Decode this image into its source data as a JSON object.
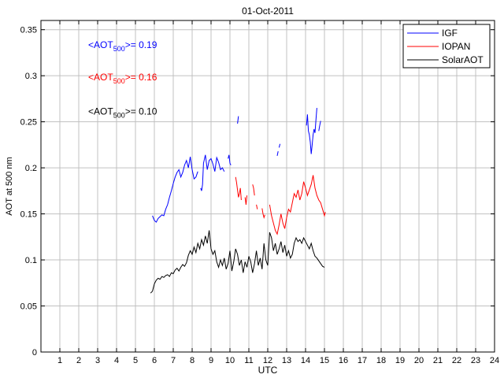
{
  "chart_data": {
    "type": "line",
    "title": "01-Oct-2011",
    "xlabel": "UTC",
    "ylabel": "AOT at 500 nm",
    "xlim": [
      0,
      24
    ],
    "ylim": [
      0,
      0.36
    ],
    "xticks": [
      1,
      2,
      3,
      4,
      5,
      6,
      7,
      8,
      9,
      10,
      11,
      12,
      13,
      14,
      15,
      16,
      17,
      18,
      19,
      20,
      21,
      22,
      23,
      24
    ],
    "yticks": [
      0,
      0.05,
      0.1,
      0.15,
      0.2,
      0.25,
      0.3,
      0.35
    ],
    "grid": true,
    "legend_position": "top-right",
    "annotations": [
      {
        "prefix": "<AOT",
        "sub": "500",
        "suffix": ">= 0.19",
        "color": "#0000ff",
        "x": 2.5,
        "y": 0.33
      },
      {
        "prefix": "<AOT",
        "sub": "500",
        "suffix": ">= 0.16",
        "color": "#ff0000",
        "x": 2.5,
        "y": 0.295
      },
      {
        "prefix": "<AOT",
        "sub": "500",
        "suffix": ">= 0.10",
        "color": "#000000",
        "x": 2.5,
        "y": 0.258
      }
    ],
    "series": [
      {
        "name": "IGF",
        "color": "#0000ff",
        "segments": [
          [
            [
              5.9,
              0.148
            ],
            [
              6.0,
              0.143
            ],
            [
              6.1,
              0.141
            ],
            [
              6.2,
              0.145
            ],
            [
              6.3,
              0.147
            ],
            [
              6.4,
              0.149
            ],
            [
              6.5,
              0.148
            ],
            [
              6.6,
              0.155
            ],
            [
              6.7,
              0.16
            ],
            [
              6.8,
              0.168
            ],
            [
              6.9,
              0.175
            ],
            [
              7.0,
              0.183
            ],
            [
              7.1,
              0.19
            ],
            [
              7.2,
              0.195
            ],
            [
              7.3,
              0.198
            ],
            [
              7.4,
              0.19
            ],
            [
              7.5,
              0.195
            ],
            [
              7.6,
              0.203
            ],
            [
              7.7,
              0.208
            ],
            [
              7.8,
              0.2
            ],
            [
              7.9,
              0.212
            ],
            [
              8.0,
              0.198
            ],
            [
              8.1,
              0.188
            ],
            [
              8.2,
              0.19
            ],
            [
              8.3,
              0.196
            ]
          ],
          [
            [
              8.45,
              0.178
            ],
            [
              8.5,
              0.175
            ],
            [
              8.55,
              0.182
            ],
            [
              8.6,
              0.205
            ],
            [
              8.7,
              0.214
            ],
            [
              8.8,
              0.198
            ],
            [
              8.9,
              0.208
            ],
            [
              9.0,
              0.21
            ],
            [
              9.1,
              0.204
            ],
            [
              9.2,
              0.196
            ],
            [
              9.3,
              0.211
            ],
            [
              9.4,
              0.206
            ],
            [
              9.5,
              0.198
            ],
            [
              9.6,
              0.2
            ],
            [
              9.7,
              0.196
            ]
          ],
          [
            [
              9.9,
              0.21
            ],
            [
              9.95,
              0.214
            ],
            [
              10.0,
              0.205
            ],
            [
              10.05,
              0.203
            ]
          ],
          [
            [
              10.4,
              0.248
            ],
            [
              10.45,
              0.256
            ]
          ],
          [
            [
              12.5,
              0.213
            ],
            [
              12.55,
              0.218
            ]
          ],
          [
            [
              12.6,
              0.222
            ],
            [
              12.65,
              0.226
            ]
          ],
          [
            [
              14.05,
              0.246
            ],
            [
              14.1,
              0.258
            ],
            [
              14.15,
              0.24
            ],
            [
              14.2,
              0.236
            ],
            [
              14.25,
              0.228
            ],
            [
              14.3,
              0.215
            ],
            [
              14.35,
              0.225
            ],
            [
              14.4,
              0.236
            ],
            [
              14.45,
              0.242
            ],
            [
              14.5,
              0.238
            ],
            [
              14.55,
              0.252
            ],
            [
              14.6,
              0.265
            ]
          ],
          [
            [
              14.7,
              0.24
            ],
            [
              14.75,
              0.246
            ],
            [
              14.8,
              0.251
            ]
          ]
        ]
      },
      {
        "name": "IOPAN",
        "color": "#ff0000",
        "segments": [
          [
            [
              10.3,
              0.19
            ],
            [
              10.35,
              0.184
            ],
            [
              10.4,
              0.176
            ],
            [
              10.45,
              0.168
            ],
            [
              10.5,
              0.172
            ],
            [
              10.55,
              0.178
            ],
            [
              10.6,
              0.165
            ]
          ],
          [
            [
              10.8,
              0.168
            ],
            [
              10.85,
              0.16
            ],
            [
              10.9,
              0.17
            ]
          ],
          [
            [
              11.2,
              0.182
            ],
            [
              11.25,
              0.178
            ],
            [
              11.3,
              0.17
            ]
          ],
          [
            [
              11.4,
              0.16
            ],
            [
              11.45,
              0.155
            ]
          ],
          [
            [
              11.7,
              0.156
            ],
            [
              11.75,
              0.15
            ],
            [
              11.8,
              0.146
            ],
            [
              11.85,
              0.149
            ]
          ],
          [
            [
              12.1,
              0.16
            ],
            [
              12.2,
              0.148
            ],
            [
              12.3,
              0.14
            ],
            [
              12.4,
              0.132
            ],
            [
              12.5,
              0.128
            ],
            [
              12.6,
              0.138
            ],
            [
              12.7,
              0.15
            ],
            [
              12.8,
              0.14
            ],
            [
              12.9,
              0.134
            ],
            [
              13.0,
              0.146
            ],
            [
              13.1,
              0.155
            ],
            [
              13.2,
              0.152
            ],
            [
              13.3,
              0.162
            ],
            [
              13.4,
              0.172
            ],
            [
              13.5,
              0.168
            ],
            [
              13.6,
              0.176
            ],
            [
              13.7,
              0.165
            ],
            [
              13.8,
              0.172
            ],
            [
              13.9,
              0.185
            ],
            [
              14.0,
              0.178
            ],
            [
              14.1,
              0.17
            ],
            [
              14.2,
              0.176
            ],
            [
              14.3,
              0.182
            ],
            [
              14.4,
              0.192
            ],
            [
              14.5,
              0.178
            ],
            [
              14.6,
              0.17
            ],
            [
              14.7,
              0.165
            ],
            [
              14.8,
              0.162
            ],
            [
              14.9,
              0.155
            ],
            [
              15.0,
              0.148
            ],
            [
              15.05,
              0.152
            ]
          ]
        ]
      },
      {
        "name": "SolarAOT",
        "color": "#000000",
        "segments": [
          [
            [
              5.8,
              0.064
            ],
            [
              5.9,
              0.066
            ],
            [
              6.0,
              0.074
            ],
            [
              6.1,
              0.078
            ],
            [
              6.2,
              0.08
            ],
            [
              6.3,
              0.079
            ],
            [
              6.4,
              0.082
            ],
            [
              6.5,
              0.081
            ],
            [
              6.6,
              0.083
            ],
            [
              6.7,
              0.084
            ],
            [
              6.8,
              0.082
            ],
            [
              6.9,
              0.086
            ],
            [
              7.0,
              0.085
            ],
            [
              7.1,
              0.089
            ],
            [
              7.2,
              0.091
            ],
            [
              7.3,
              0.088
            ],
            [
              7.4,
              0.092
            ],
            [
              7.5,
              0.095
            ],
            [
              7.6,
              0.093
            ],
            [
              7.7,
              0.097
            ],
            [
              7.8,
              0.105
            ],
            [
              7.9,
              0.11
            ],
            [
              8.0,
              0.106
            ],
            [
              8.1,
              0.114
            ],
            [
              8.2,
              0.108
            ],
            [
              8.3,
              0.118
            ],
            [
              8.4,
              0.112
            ],
            [
              8.5,
              0.122
            ],
            [
              8.6,
              0.116
            ],
            [
              8.7,
              0.126
            ],
            [
              8.8,
              0.118
            ],
            [
              8.9,
              0.132
            ],
            [
              9.0,
              0.112
            ],
            [
              9.1,
              0.106
            ],
            [
              9.2,
              0.11
            ],
            [
              9.3,
              0.098
            ],
            [
              9.4,
              0.092
            ],
            [
              9.5,
              0.1
            ],
            [
              9.6,
              0.094
            ],
            [
              9.7,
              0.102
            ],
            [
              9.8,
              0.09
            ],
            [
              9.9,
              0.096
            ],
            [
              10.0,
              0.11
            ],
            [
              10.1,
              0.088
            ],
            [
              10.2,
              0.098
            ],
            [
              10.3,
              0.112
            ],
            [
              10.4,
              0.106
            ],
            [
              10.5,
              0.094
            ],
            [
              10.6,
              0.1
            ],
            [
              10.7,
              0.086
            ],
            [
              10.8,
              0.098
            ],
            [
              10.9,
              0.092
            ],
            [
              11.0,
              0.104
            ],
            [
              11.1,
              0.098
            ],
            [
              11.2,
              0.086
            ],
            [
              11.3,
              0.096
            ],
            [
              11.4,
              0.11
            ],
            [
              11.5,
              0.094
            ],
            [
              11.6,
              0.102
            ],
            [
              11.7,
              0.09
            ],
            [
              11.8,
              0.118
            ],
            [
              11.9,
              0.1
            ],
            [
              12.0,
              0.094
            ],
            [
              12.1,
              0.13
            ],
            [
              12.2,
              0.124
            ],
            [
              12.3,
              0.11
            ],
            [
              12.4,
              0.118
            ],
            [
              12.5,
              0.106
            ],
            [
              12.6,
              0.112
            ],
            [
              12.7,
              0.12
            ],
            [
              12.8,
              0.108
            ],
            [
              12.9,
              0.116
            ],
            [
              13.0,
              0.104
            ],
            [
              13.1,
              0.11
            ],
            [
              13.2,
              0.102
            ],
            [
              13.3,
              0.106
            ],
            [
              13.4,
              0.118
            ],
            [
              13.5,
              0.124
            ],
            [
              13.6,
              0.12
            ],
            [
              13.7,
              0.122
            ],
            [
              13.8,
              0.118
            ],
            [
              13.9,
              0.124
            ],
            [
              14.0,
              0.12
            ],
            [
              14.1,
              0.116
            ],
            [
              14.2,
              0.112
            ],
            [
              14.3,
              0.118
            ],
            [
              14.4,
              0.11
            ],
            [
              14.5,
              0.104
            ],
            [
              14.6,
              0.102
            ],
            [
              14.7,
              0.099
            ],
            [
              14.8,
              0.096
            ],
            [
              14.9,
              0.093
            ],
            [
              15.0,
              0.092
            ]
          ]
        ]
      }
    ]
  }
}
